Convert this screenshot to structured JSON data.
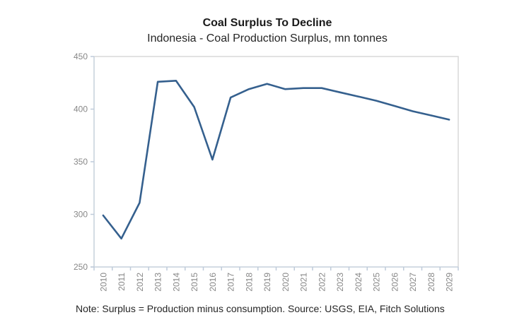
{
  "header": {
    "title": "Coal Surplus To Decline",
    "subtitle": "Indonesia - Coal Production Surplus, mn tonnes"
  },
  "footer": {
    "note": "Note: Surplus = Production minus consumption. Source: USGS, EIA, Fitch Solutions"
  },
  "chart_data": {
    "type": "line",
    "title": "Coal Surplus To Decline",
    "subtitle": "Indonesia - Coal Production Surplus, mn tonnes",
    "categories": [
      "2010",
      "2011",
      "2012",
      "2013",
      "2014",
      "2015",
      "2016",
      "2017",
      "2018",
      "2019",
      "2020",
      "2021",
      "2022",
      "2023",
      "2024",
      "2025",
      "2026",
      "2027",
      "2028",
      "2029"
    ],
    "series": [
      {
        "name": "Coal Production Surplus, mn tonnes",
        "values": [
          299,
          277,
          311,
          426,
          427,
          402,
          352,
          411,
          419,
          424,
          419,
          420,
          420,
          416,
          412,
          408,
          403,
          398,
          394,
          390
        ]
      }
    ],
    "ylim": [
      250,
      450
    ],
    "yticks": [
      250,
      300,
      350,
      400,
      450
    ],
    "grid": false,
    "legend_position": "none",
    "x_label_rotation": -90,
    "note": "Note: Surplus = Production minus consumption. Source: USGS, EIA, Fitch Solutions"
  },
  "colors": {
    "line": "#35608e",
    "axis": "#c5d0dc",
    "tick": "#bfcbda",
    "plot_border": "#d9d9d9",
    "axis_label": "#878787",
    "title": "#1a1a1a",
    "subtitle": "#262626",
    "note": "#262626",
    "background": "#ffffff"
  }
}
